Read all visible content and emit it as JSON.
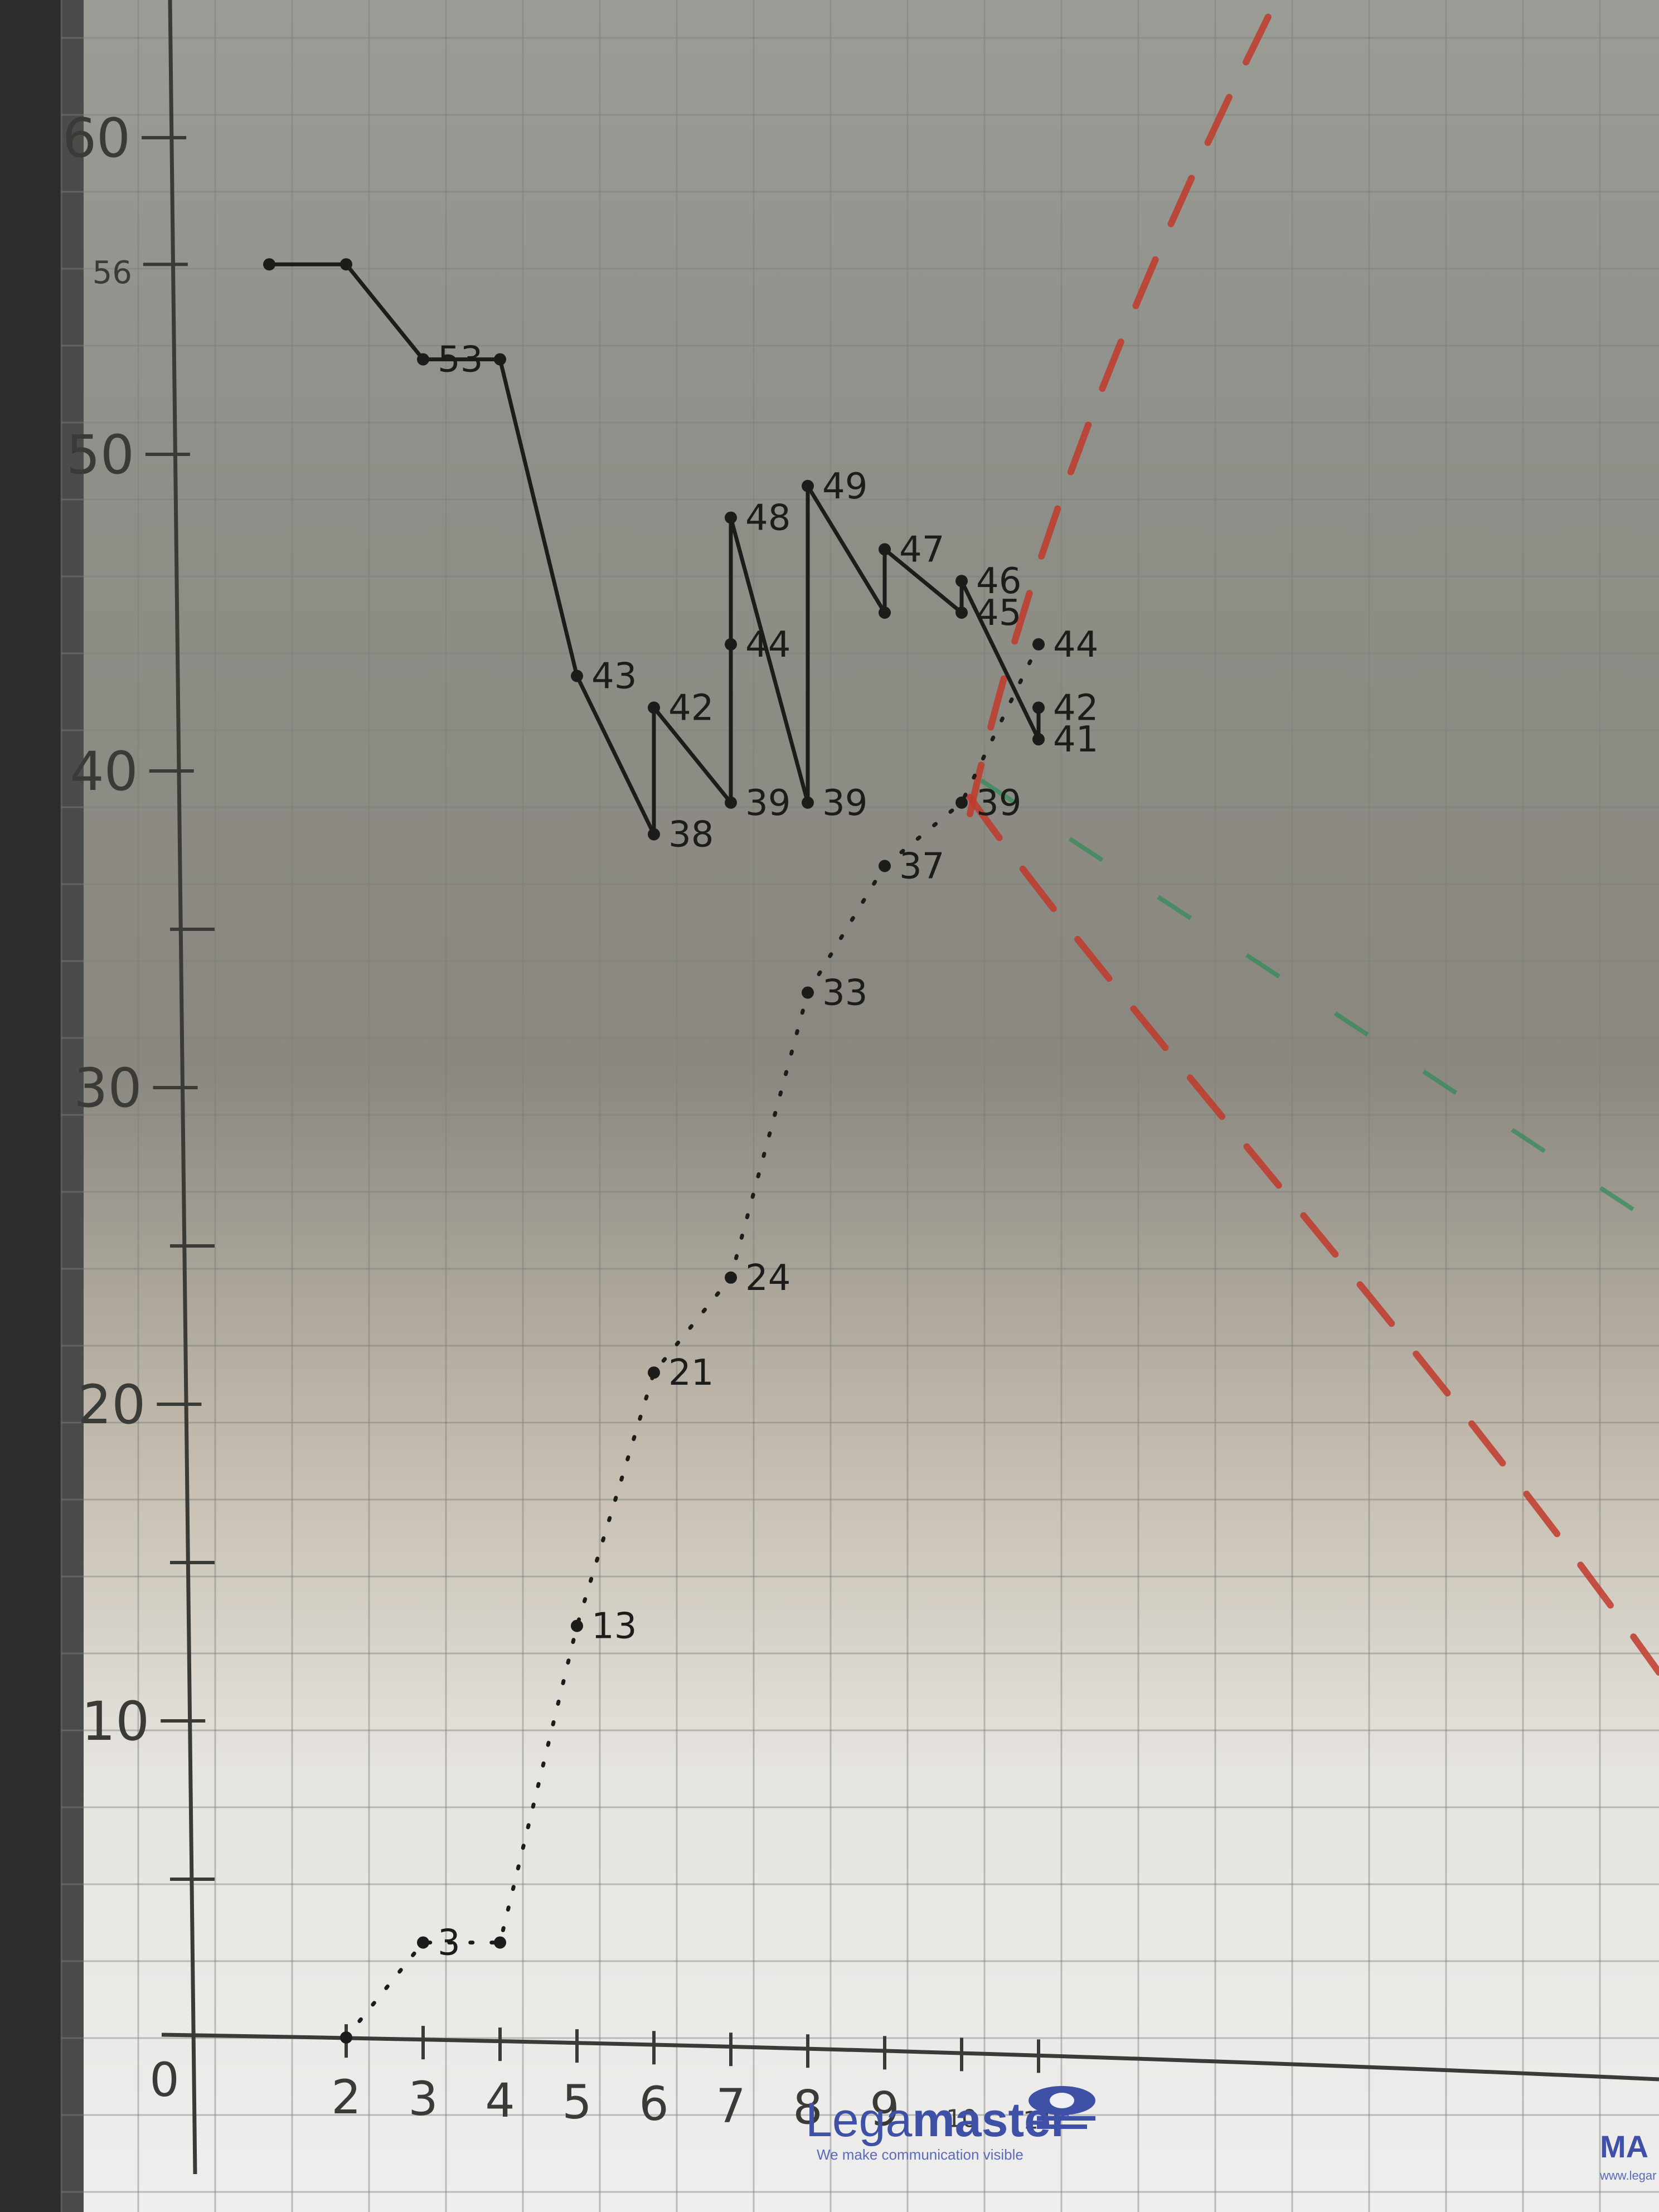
{
  "chart_data": {
    "type": "line",
    "title": "",
    "xlabel": "",
    "ylabel": "",
    "xlim": [
      1,
      11
    ],
    "ylim": [
      0,
      64
    ],
    "grid": true,
    "y_ticks": [
      {
        "value": 60,
        "label": "60"
      },
      {
        "value": 56,
        "label": "56"
      },
      {
        "value": 50,
        "label": "50"
      },
      {
        "value": 40,
        "label": "40"
      },
      {
        "value": 30,
        "label": "30"
      },
      {
        "value": 20,
        "label": "20"
      },
      {
        "value": 10,
        "label": "10"
      }
    ],
    "x_ticks": [
      {
        "value": 2,
        "label": "2"
      },
      {
        "value": 3,
        "label": "3"
      },
      {
        "value": 4,
        "label": "4"
      },
      {
        "value": 5,
        "label": "5"
      },
      {
        "value": 6,
        "label": "6"
      },
      {
        "value": 7,
        "label": "7"
      },
      {
        "value": 8,
        "label": "8"
      },
      {
        "value": 9,
        "label": "9"
      },
      {
        "value": 10,
        "label": "10"
      },
      {
        "value": 11,
        "label": "11"
      }
    ],
    "origin_label": "0",
    "series": [
      {
        "style": "solid",
        "points": [
          {
            "x": 1,
            "y": 56,
            "label": ""
          },
          {
            "x": 2,
            "y": 56,
            "label": ""
          },
          {
            "x": 3,
            "y": 53,
            "label": "53"
          },
          {
            "x": 4,
            "y": 53,
            "label": ""
          },
          {
            "x": 5,
            "y": 43,
            "label": "43"
          },
          {
            "x": 6,
            "y": 38,
            "label": "38"
          },
          {
            "x": 6,
            "y": 42,
            "label": "42"
          },
          {
            "x": 7,
            "y": 39,
            "label": "39"
          },
          {
            "x": 7,
            "y": 44,
            "label": "44"
          },
          {
            "x": 7,
            "y": 48,
            "label": "48"
          },
          {
            "x": 8,
            "y": 39,
            "label": "39"
          },
          {
            "x": 8,
            "y": 49,
            "label": "49"
          },
          {
            "x": 9,
            "y": 45,
            "label": ""
          },
          {
            "x": 9,
            "y": 47,
            "label": "47"
          },
          {
            "x": 10,
            "y": 45,
            "label": "45"
          },
          {
            "x": 10,
            "y": 46,
            "label": "46"
          },
          {
            "x": 11,
            "y": 41,
            "label": "41"
          },
          {
            "x": 11,
            "y": 42,
            "label": "42"
          }
        ]
      },
      {
        "style": "dotted",
        "points": [
          {
            "x": 2,
            "y": 0,
            "label": ""
          },
          {
            "x": 3,
            "y": 3,
            "label": "3"
          },
          {
            "x": 4,
            "y": 3,
            "label": ""
          },
          {
            "x": 5,
            "y": 13,
            "label": "13"
          },
          {
            "x": 6,
            "y": 21,
            "label": "21"
          },
          {
            "x": 7,
            "y": 24,
            "label": "24"
          },
          {
            "x": 8,
            "y": 33,
            "label": "33"
          },
          {
            "x": 9,
            "y": 37,
            "label": "37"
          },
          {
            "x": 10,
            "y": 39,
            "label": "39"
          },
          {
            "x": 11,
            "y": 44,
            "label": "44"
          }
        ]
      }
    ]
  },
  "branding": {
    "logo_prefix": "Lega",
    "logo_suffix": "master",
    "tagline": "We make communication visible",
    "corner_text": "MA",
    "corner_url": "www.legar"
  },
  "colors": {
    "ink": "#1c1c1a",
    "red_guide": "#c0392b",
    "green_guide": "#2e8b57",
    "brand_blue": "#3f50a7"
  }
}
